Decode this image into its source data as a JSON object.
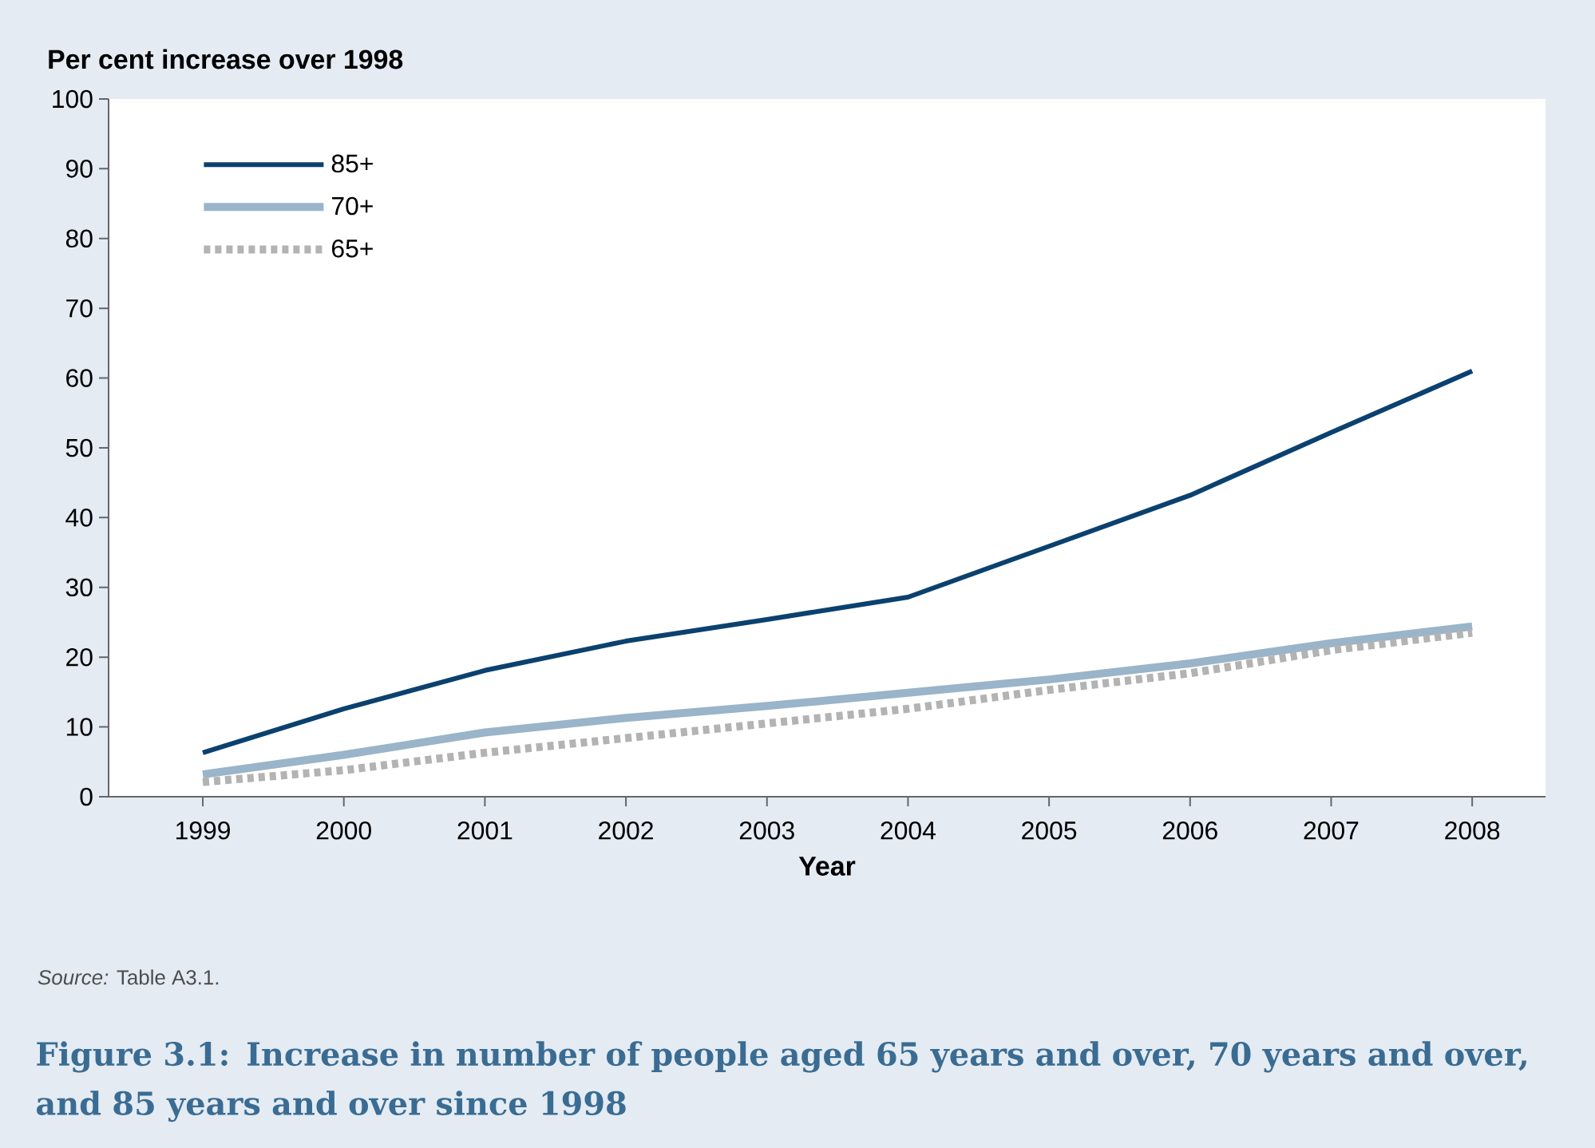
{
  "chart_data": {
    "type": "line",
    "title": "Figure 3.1: Increase in number of people aged 65 years and over, 70 years and over, and 85 years and over since 1998",
    "ylabel": "Per cent increase over 1998",
    "xlabel": "Year",
    "annotations": [
      "*Source:* Table A3.1."
    ],
    "categories": [
      "1999",
      "2000",
      "2001",
      "2002",
      "2003",
      "2004",
      "2005",
      "2006",
      "2007",
      "2008"
    ],
    "ylim": [
      0,
      100
    ],
    "yticks": [
      0,
      10,
      20,
      30,
      40,
      50,
      60,
      70,
      80,
      90,
      100
    ],
    "legend": "top left",
    "grid": false,
    "series": [
      {
        "name": "85+",
        "color": "#0b416f",
        "line_style": "solid",
        "values": [
          6.3,
          12.6,
          18.1,
          22.3,
          25.4,
          28.6,
          35.9,
          43.2,
          52.2,
          61.0
        ]
      },
      {
        "name": "70+",
        "color": "#9ab4c9",
        "line_style": "solid",
        "values": [
          3.2,
          6.0,
          9.2,
          11.3,
          13.0,
          14.9,
          16.8,
          19.1,
          22.0,
          24.4
        ]
      },
      {
        "name": "65+",
        "color": "#b3b3b3",
        "line_style": "dotted",
        "values": [
          2.1,
          3.8,
          6.3,
          8.4,
          10.5,
          12.6,
          15.3,
          17.7,
          21.0,
          23.5
        ]
      }
    ]
  }
}
